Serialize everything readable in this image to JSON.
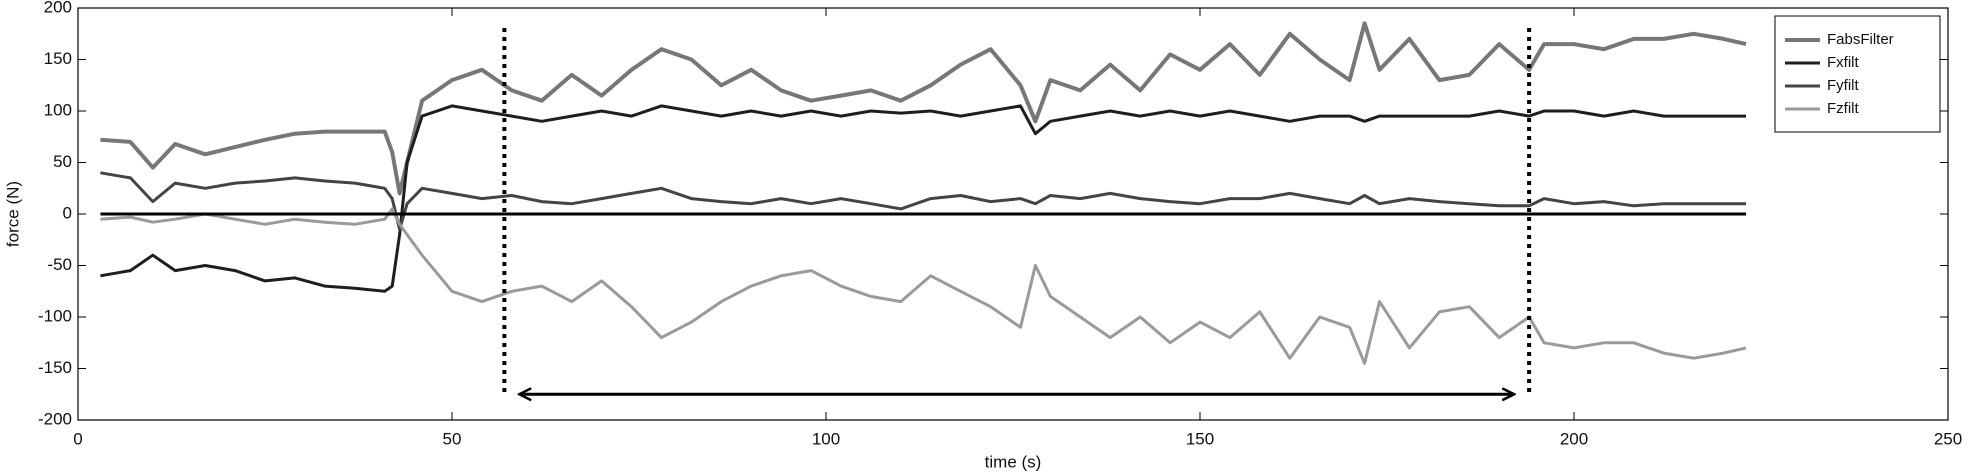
{
  "chart_data": {
    "type": "line",
    "xlabel": "time (s)",
    "ylabel": "force (N)",
    "xlim": [
      0,
      250
    ],
    "ylim": [
      -200,
      200
    ],
    "xticks": [
      0,
      50,
      100,
      150,
      200,
      250
    ],
    "yticks": [
      -200,
      -150,
      -100,
      -50,
      0,
      50,
      100,
      150,
      200
    ],
    "grid": false,
    "legend": "upper right",
    "hline": 0,
    "vlines": [
      57,
      194
    ],
    "arrow": {
      "x": [
        59,
        192
      ],
      "y": -175
    },
    "x": [
      3,
      7,
      10,
      13,
      17,
      21,
      25,
      29,
      33,
      37,
      41,
      42,
      43,
      44,
      46,
      50,
      54,
      58,
      62,
      66,
      70,
      74,
      78,
      82,
      86,
      90,
      94,
      98,
      102,
      106,
      110,
      114,
      118,
      122,
      126,
      128,
      130,
      134,
      138,
      142,
      146,
      150,
      154,
      158,
      162,
      166,
      170,
      172,
      174,
      178,
      182,
      186,
      190,
      194,
      196,
      200,
      204,
      208,
      212,
      216,
      220,
      223
    ],
    "series": [
      {
        "name": "FabsFilter",
        "color": "#777777",
        "values": [
          72,
          70,
          45,
          68,
          58,
          65,
          72,
          78,
          80,
          80,
          80,
          60,
          20,
          50,
          110,
          130,
          140,
          120,
          110,
          135,
          115,
          140,
          160,
          150,
          125,
          140,
          120,
          110,
          115,
          120,
          110,
          125,
          145,
          160,
          125,
          90,
          130,
          120,
          145,
          120,
          155,
          140,
          165,
          135,
          175,
          150,
          130,
          185,
          140,
          170,
          130,
          135,
          165,
          140,
          165,
          165,
          160,
          170,
          170,
          175,
          170,
          165
        ]
      },
      {
        "name": "Fxfilt",
        "color": "#1e1e1e",
        "values": [
          -60,
          -55,
          -40,
          -55,
          -50,
          -55,
          -65,
          -62,
          -70,
          -72,
          -75,
          -70,
          -20,
          50,
          95,
          105,
          100,
          95,
          90,
          95,
          100,
          95,
          105,
          100,
          95,
          100,
          95,
          100,
          95,
          100,
          98,
          100,
          95,
          100,
          105,
          78,
          90,
          95,
          100,
          95,
          100,
          95,
          100,
          95,
          90,
          95,
          95,
          90,
          95,
          95,
          95,
          95,
          100,
          95,
          100,
          100,
          95,
          100,
          95,
          95,
          95,
          95
        ]
      },
      {
        "name": "Fyfilt",
        "color": "#444444",
        "values": [
          40,
          35,
          12,
          30,
          25,
          30,
          32,
          35,
          32,
          30,
          25,
          15,
          -15,
          10,
          25,
          20,
          15,
          18,
          12,
          10,
          15,
          20,
          25,
          15,
          12,
          10,
          15,
          10,
          15,
          10,
          5,
          15,
          18,
          12,
          15,
          10,
          18,
          15,
          20,
          15,
          12,
          10,
          15,
          15,
          20,
          15,
          10,
          18,
          10,
          15,
          12,
          10,
          8,
          8,
          15,
          10,
          12,
          8,
          10,
          10,
          10,
          10
        ]
      },
      {
        "name": "Fzfilt",
        "color": "#9a9a9a",
        "values": [
          -5,
          -3,
          -8,
          -5,
          0,
          -5,
          -10,
          -5,
          -8,
          -10,
          -5,
          5,
          -10,
          -20,
          -40,
          -75,
          -85,
          -75,
          -70,
          -85,
          -65,
          -90,
          -120,
          -105,
          -85,
          -70,
          -60,
          -55,
          -70,
          -80,
          -85,
          -60,
          -75,
          -90,
          -110,
          -50,
          -80,
          -100,
          -120,
          -100,
          -125,
          -105,
          -120,
          -95,
          -140,
          -100,
          -110,
          -145,
          -85,
          -130,
          -95,
          -90,
          -120,
          -100,
          -125,
          -130,
          -125,
          -125,
          -135,
          -140,
          -135,
          -130
        ]
      }
    ]
  }
}
